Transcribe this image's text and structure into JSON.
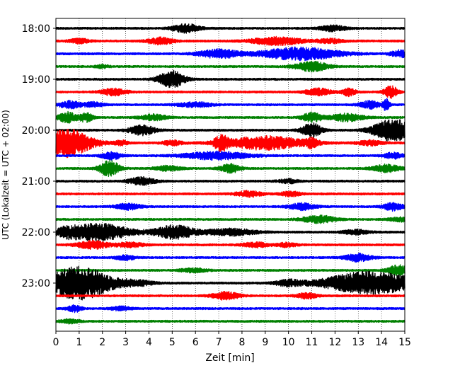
{
  "chart_data": {
    "type": "line",
    "xlabel": "Zeit  [min]",
    "ylabel": "UTC (Lokalzeit = UTC + 02:00)",
    "xlim": [
      0,
      15
    ],
    "x_ticks": [
      "0",
      "1",
      "2",
      "3",
      "4",
      "5",
      "6",
      "7",
      "8",
      "9",
      "10",
      "11",
      "12",
      "13",
      "14",
      "15"
    ],
    "y_tick_labels": [
      "18:00",
      "19:00",
      "20:00",
      "21:00",
      "22:00",
      "23:00"
    ],
    "grid": "vertical dotted lines at each minute",
    "trace_start_times": [
      "18:00",
      "18:15",
      "18:30",
      "18:45",
      "19:00",
      "19:15",
      "19:30",
      "19:45",
      "20:00",
      "20:15",
      "20:30",
      "20:45",
      "21:00",
      "21:15",
      "21:30",
      "21:45",
      "22:00",
      "22:15",
      "22:30",
      "22:45",
      "23:00",
      "23:15",
      "23:30",
      "23:45"
    ],
    "trace_colors": [
      "#000000",
      "#ff0000",
      "#0000ff",
      "#008000"
    ],
    "series": [
      {
        "events": [
          [
            5.6,
            0.4,
            0.9
          ],
          [
            11.9,
            0.4,
            0.6
          ]
        ]
      },
      {
        "events": [
          [
            1.0,
            0.3,
            0.5
          ],
          [
            4.5,
            0.4,
            0.7
          ],
          [
            9.5,
            0.8,
            0.8
          ],
          [
            11.8,
            0.4,
            0.4
          ]
        ]
      },
      {
        "events": [
          [
            7.0,
            0.6,
            0.9
          ],
          [
            10.5,
            1.2,
            1.3
          ],
          [
            14.8,
            0.3,
            0.7
          ]
        ]
      },
      {
        "events": [
          [
            11.0,
            0.5,
            1.0
          ],
          [
            2.0,
            0.2,
            0.3
          ]
        ]
      },
      {
        "events": [
          [
            4.9,
            0.4,
            1.3
          ],
          [
            5.2,
            0.3,
            0.6
          ]
        ]
      },
      {
        "events": [
          [
            2.5,
            0.4,
            0.7
          ],
          [
            11.3,
            0.4,
            0.7
          ],
          [
            12.6,
            0.2,
            0.8
          ],
          [
            14.4,
            0.2,
            1.3
          ]
        ]
      },
      {
        "events": [
          [
            0.6,
            0.3,
            0.8
          ],
          [
            1.6,
            0.3,
            0.5
          ],
          [
            6.0,
            0.5,
            0.5
          ],
          [
            13.5,
            0.3,
            0.8
          ],
          [
            14.2,
            0.1,
            1.2
          ]
        ]
      },
      {
        "events": [
          [
            0.5,
            0.3,
            1.1
          ],
          [
            1.3,
            0.2,
            0.9
          ],
          [
            4.2,
            0.4,
            0.6
          ],
          [
            11.0,
            0.3,
            1.0
          ],
          [
            12.5,
            0.5,
            0.8
          ]
        ]
      },
      {
        "events": [
          [
            3.7,
            0.4,
            1.0
          ],
          [
            11.0,
            0.3,
            1.5
          ],
          [
            14.5,
            0.6,
            2.4
          ]
        ]
      },
      {
        "events": [
          [
            0.4,
            0.8,
            3.0
          ],
          [
            2.8,
            0.2,
            0.5
          ],
          [
            5.0,
            0.3,
            0.5
          ],
          [
            7.1,
            0.2,
            1.4
          ],
          [
            9.0,
            1.2,
            1.4
          ],
          [
            11.0,
            0.2,
            0.8
          ],
          [
            13.5,
            0.4,
            0.5
          ]
        ]
      },
      {
        "events": [
          [
            2.4,
            0.3,
            0.8
          ],
          [
            6.9,
            1.0,
            0.8
          ],
          [
            14.5,
            0.3,
            0.6
          ]
        ]
      },
      {
        "events": [
          [
            2.3,
            0.3,
            1.7
          ],
          [
            4.8,
            0.4,
            0.5
          ],
          [
            7.5,
            0.3,
            0.9
          ],
          [
            14.2,
            0.4,
            0.8
          ]
        ]
      },
      {
        "events": [
          [
            3.7,
            0.4,
            0.8
          ],
          [
            10.0,
            0.3,
            0.4
          ]
        ]
      },
      {
        "events": [
          [
            8.3,
            0.4,
            0.6
          ],
          [
            10.1,
            0.3,
            0.5
          ]
        ]
      },
      {
        "events": [
          [
            3.1,
            0.4,
            0.6
          ],
          [
            10.6,
            0.4,
            0.7
          ],
          [
            14.5,
            0.3,
            0.8
          ]
        ]
      },
      {
        "events": [
          [
            11.3,
            0.5,
            0.8
          ],
          [
            14.9,
            0.4,
            0.4
          ]
        ]
      },
      {
        "events": [
          [
            0.5,
            0.3,
            0.6
          ],
          [
            1.8,
            1.0,
            1.8
          ],
          [
            5.1,
            0.6,
            1.4
          ],
          [
            7.5,
            0.8,
            0.7
          ],
          [
            12.9,
            0.4,
            0.5
          ]
        ]
      },
      {
        "events": [
          [
            1.6,
            0.5,
            0.8
          ],
          [
            3.2,
            0.4,
            0.5
          ],
          [
            8.6,
            0.4,
            0.5
          ],
          [
            9.9,
            0.3,
            0.4
          ]
        ]
      },
      {
        "events": [
          [
            3.0,
            0.3,
            0.5
          ],
          [
            13.0,
            0.4,
            0.8
          ]
        ]
      },
      {
        "events": [
          [
            5.9,
            0.4,
            0.4
          ],
          [
            14.7,
            0.3,
            1.1
          ]
        ]
      },
      {
        "events": [
          [
            1.0,
            1.0,
            3.5
          ],
          [
            3.5,
            0.5,
            0.5
          ],
          [
            10.0,
            0.4,
            0.6
          ],
          [
            13.5,
            1.4,
            2.4
          ]
        ]
      },
      {
        "events": [
          [
            7.3,
            0.4,
            0.8
          ],
          [
            10.8,
            0.3,
            0.6
          ]
        ]
      },
      {
        "events": [
          [
            0.8,
            0.2,
            0.7
          ],
          [
            2.8,
            0.3,
            0.4
          ]
        ]
      },
      {
        "events": [
          [
            0.6,
            0.3,
            0.4
          ]
        ]
      }
    ]
  }
}
